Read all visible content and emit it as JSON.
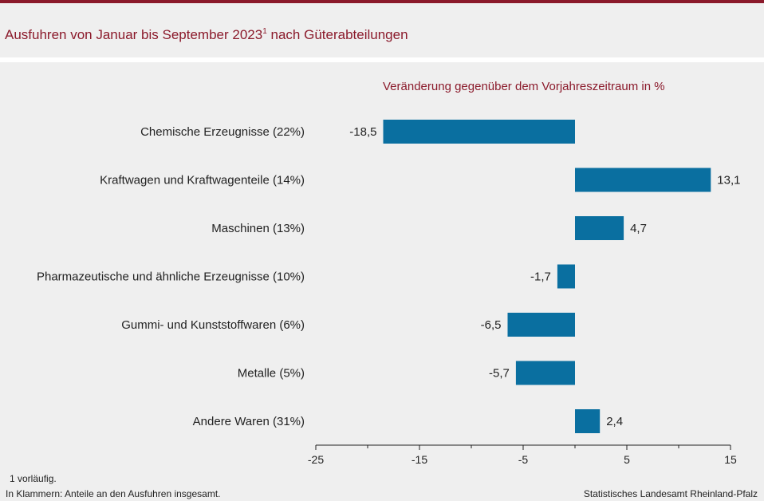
{
  "header": {
    "title": "Ausfuhren von Januar bis September 2023",
    "title_footnote_marker": "1"
  },
  "colors": {
    "accent": "#8b1a2b",
    "bar": "#0a6fa0",
    "panel": "#efefef"
  },
  "chart_data": {
    "type": "bar",
    "orientation": "horizontal",
    "subtitle": "Veränderung gegenüber dem Vorjahreszeitraum in %",
    "categories": [
      "Chemische Erzeugnisse (22%)",
      "Kraftwagen und Kraftwagenteile (14%)",
      "Maschinen (13%)",
      "Pharmazeutische und ähnliche Erzeugnisse (10%)",
      "Gummi- und Kunststoffwaren (6%)",
      "Metalle (5%)",
      "Andere Waren (31%)"
    ],
    "values": [
      -18.5,
      13.1,
      4.7,
      -1.7,
      -6.5,
      -5.7,
      2.4
    ],
    "value_labels": [
      "-18,5",
      "13,1",
      "4,7",
      "-1,7",
      "-6,5",
      "-5,7",
      "2,4"
    ],
    "xlim": [
      -25,
      15
    ],
    "ticks": [
      -25,
      -15,
      -5,
      5,
      15
    ],
    "tick_labels": [
      "-25",
      "-15",
      "-5",
      "5",
      "15"
    ],
    "xlabel": "",
    "ylabel": ""
  },
  "footer": {
    "footnote": "1 vorläufig.",
    "note": "In Klammern: Anteile an den Ausfuhren insgesamt.",
    "source": "Statistisches Landesamt Rheinland-Pfalz"
  }
}
